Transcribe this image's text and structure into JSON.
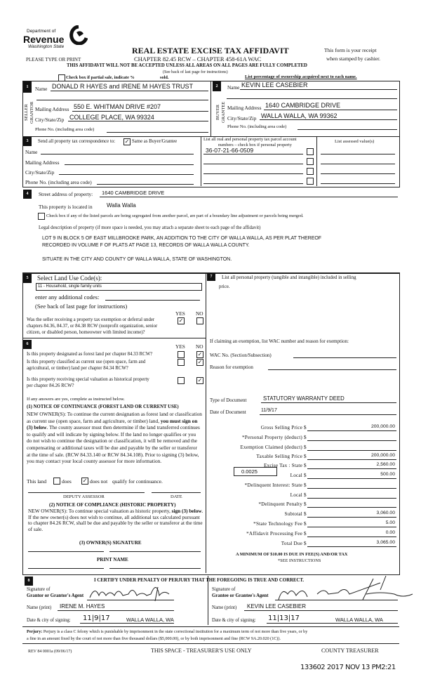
{
  "header": {
    "dept_of": "Department of",
    "revenue": "Revenue",
    "state": "Washington State",
    "title": "REAL ESTATE EXCISE TAX AFFIDAVIT",
    "chapter": "CHAPTER 82.45 RCW – CHAPTER 458-61A WAC",
    "please": "PLEASE TYPE OR PRINT",
    "receipt_1": "This form is your receipt",
    "receipt_2": "when stamped by cashier.",
    "warning": "THIS AFFIDAVIT WILL NOT BE ACCEPTED UNLESS ALL AREAS ON ALL PAGES ARE FULLY COMPLETED",
    "see_back": "(See back of last page for instructions)",
    "partial_sale": "Check box if partial sale, indicate %",
    "sold": "sold.",
    "list_pct": "List percentage of ownership acquired next to each name."
  },
  "seller": {
    "num": "1",
    "side_1": "SELLER",
    "side_2": "GRANTOR",
    "name_label": "Name",
    "name": "DONALD R HAYES and IRENE M HAYES TRUST",
    "mailing_label": "Mailing Address",
    "mailing": "550 E. WHITMAN DRIVE #207",
    "city_label": "City/State/Zip",
    "city": "COLLEGE PLACE, WA 99324",
    "phone_label": "Phone No. (including area code)"
  },
  "buyer": {
    "num": "2",
    "side_1": "BUYER",
    "side_2": "GRANTEE",
    "name_label": "Name",
    "name": "KEVIN LEE CASEBIER",
    "mailing_label": "Mailing Address",
    "mailing": "1640 CAMBRIDGE DRIVE",
    "city_label": "City/State/Zip",
    "city": "WALLA WALLA, WA 99362",
    "phone_label": "Phone No. (including area code)"
  },
  "correspondence": {
    "num": "3",
    "send_label": "Send all property tax correspondence to:",
    "same_label": "Same as Buyer/Grantee",
    "same_checked": true,
    "name_label": "Name",
    "mailing_label": "Mailing Address",
    "city_label": "City/State/Zip",
    "phone_label": "Phone No. (including area code)",
    "parcel_header_1": "List all real and personal property tax parcel account",
    "parcel_header_2": "numbers – check box if personal property",
    "parcels": [
      "36-07-21-66-0509",
      "",
      "",
      ""
    ],
    "assessed_header": "List assessed value(s)"
  },
  "property": {
    "num": "4",
    "street_label": "Street address of property:",
    "street": "1640 CAMBRIDGE DRIVE",
    "located_label": "This property is located in",
    "located": "Walla Walla",
    "segregated_label": "Check box if any of the listed parcels are being segregated from another parcel, are part of a boundary line adjustment or parcels being merged.",
    "segregated_checked": false,
    "legal_label": "Legal description of property (if more space is needed, you may attach a separate sheet to each page of the affidavit)",
    "legal": [
      "LOT 9 IN BLOCK 5 OF EAST MILLBROOKE PARK, AN ADDITION TO THE CITY OF WALLA WALLA, AS PER PLAT THEREOF",
      "RECORDED IN VOLUME F OF PLATS AT PAGE 13, RECORDS OF WALLA WALLA COUNTY.",
      "SITUATE IN THE CITY AND COUNTY OF WALLA WALLA, STATE OF WASHINGTON."
    ]
  },
  "land_use": {
    "num": "5",
    "select_label": "Select Land Use Code(s):",
    "code": "11 - Household, single family units",
    "additional_label": "enter any additional codes:",
    "see_back": "(See back of last page for instructions)",
    "yes": "YES",
    "no": "NO",
    "question_lines": [
      "Was the seller receiving a property tax exemption or deferral under",
      "chapters 84.36, 84.37, or 84.38 RCW (nonprofit organization, senior",
      "citizen, or disabled person, homeowner with limited income)?"
    ],
    "answer": "yes"
  },
  "designation": {
    "num": "6",
    "yes": "YES",
    "no": "NO",
    "questions": [
      {
        "lines": [
          "Is this property designated as forest land per chapter 84.33 RCW?"
        ],
        "answer": "no"
      },
      {
        "lines": [
          "Is this property classified as current use (open space, farm and",
          "agricultural, or timber) land per chapter 84.34 RCW?"
        ],
        "answer": "no"
      },
      {
        "lines": [
          "Is this property receiving special valuation as historical property",
          "per chapter 84.26 RCW?"
        ],
        "answer": "no"
      }
    ],
    "if_yes": "If any answers are yes, complete as instructed below.",
    "notice1_title": "(1) NOTICE OF CONTINUANCE  (FOREST LAND OR CURRENT USE)",
    "notice1_a": "NEW OWNER(S): To continue the current designation as forest land or classification as current use (open space, farm and agriculture, or timber) land,",
    "notice1_bold": "you must sign on (3) below",
    "notice1_b": ". The county assessor must then determine if the land transferred continues to qualify and will indicate by signing below. If the land no longer qualifies or you do not wish to continue the designation or classification, it will be removed and the compensating or additional taxes will be due and payable by the seller or transferor at the time of sale. (RCW 84.33.140 or RCW 84.34.108). Prior to signing (3) below, you may contact your local county assessor for more information.",
    "this_land": "This land",
    "does": "does",
    "does_not": "does not",
    "qualify": "qualify for continuance.",
    "continuance": "does not",
    "deputy_assessor": "DEPUTY ASSESSOR",
    "date": "DATE",
    "notice2_title": "(2) NOTICE OF COMPLIANCE (HISTORIC PROPERTY)",
    "notice2_a": "NEW OWNER(S): To continue special valuation as historic property,",
    "notice2_bold": "sign (3) below",
    "notice2_b": ". If the new owner(s) does not wish to continue, all additional tax calculated pursuant to chapter 84.26 RCW, shall be due and payable by the seller or transferor at the time of sale.",
    "owner_signature": "(3)  OWNER(S) SIGNATURE",
    "print_name": "PRINT NAME"
  },
  "personal_property": {
    "num": "7",
    "list_label": "List all  personal property (tangible and intangible) included in selling",
    "list_label_2": "price.",
    "exemption_label": "If claiming an exemption, list WAC number and reason for exemption:",
    "wac_label": "WAC No. (Section/Subsection)",
    "reason_label": "Reason for exemption",
    "doc_type_label": "Type of Document",
    "doc_type": "STATUTORY WARRANTY DEED",
    "doc_date_label": "Date of Document",
    "doc_date": "11/9/17",
    "local_rate": "0.0025",
    "currency": "$",
    "fees": [
      {
        "label": "Gross Selling Price",
        "value": "200,000.00"
      },
      {
        "label": "*Personal Property (deduct)",
        "value": ""
      },
      {
        "label": "Exemption Claimed (deduct)",
        "value": ""
      },
      {
        "label": "Taxable Selling Price",
        "value": "200,000.00"
      },
      {
        "label": "Excise Tax : State",
        "value": "2,560.00"
      },
      {
        "label": "Local",
        "value": "500.00"
      },
      {
        "label": "*Delinquent Interest: State",
        "value": ""
      },
      {
        "label": "Local",
        "value": ""
      },
      {
        "label": "*Delinquent Penalty",
        "value": ""
      },
      {
        "label": "Subtotal",
        "value": "3,060.00"
      },
      {
        "label": "*State Technology Fee",
        "value": "5.00"
      },
      {
        "label": "*Affidavit Processing Fee",
        "value": "0.00"
      },
      {
        "label": "Total Due",
        "value": "3,065.00"
      }
    ],
    "minimum": "A MINIMUM OF $10.00 IS DUE IN FEE(S) AND/OR TAX",
    "see_instructions": "*SEE INSTRUCTIONS"
  },
  "certification": {
    "num": "8",
    "certify": "I CERTIFY UNDER PENALTY OF PERJURY THAT THE FOREGOING IS TRUE AND CORRECT.",
    "signature_of": "Signature of",
    "grantor_agent": "Grantor or Grantor's Agent",
    "grantee_agent": "Grantee or Grantee's Agent",
    "name_print": "Name (print)",
    "grantor_name": "IRENE M. HAYES",
    "grantee_name": "KEVIN LEE CASEBIER",
    "date_city": "Date & city of signing:",
    "grantor_date": "11|9|17",
    "grantor_city": "WALLA WALLA, WA",
    "grantee_date": "11|13|17",
    "grantee_city": "WALLA WALLA, WA"
  },
  "footer": {
    "perjury_bold": "Perjury:",
    "perjury_1": " Perjury is a class C felony which is punishable by imprisonment in the state correctional institution for a maximum term of not more than five years, or by",
    "perjury_2": "a fine in an amount fixed by the court of not more than five thousand dollars ($5,000.00), or by both imprisonment and fine (RCW 9A.20.020 (1C)).",
    "rev": "REV 84 0001a (09/06/17)",
    "treasurer_space": "THIS SPACE - TREASURER'S USE ONLY",
    "county_treasurer": "COUNTY TREASURER",
    "stamp": "133602 2017 NOV 13 PM2:21"
  }
}
